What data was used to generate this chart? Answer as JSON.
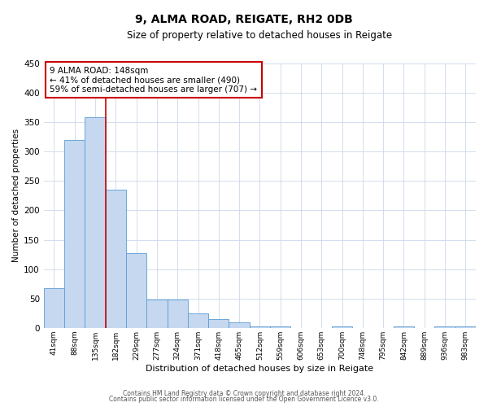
{
  "title": "9, ALMA ROAD, REIGATE, RH2 0DB",
  "subtitle": "Size of property relative to detached houses in Reigate",
  "xlabel": "Distribution of detached houses by size in Reigate",
  "ylabel": "Number of detached properties",
  "bin_labels": [
    "41sqm",
    "88sqm",
    "135sqm",
    "182sqm",
    "229sqm",
    "277sqm",
    "324sqm",
    "371sqm",
    "418sqm",
    "465sqm",
    "512sqm",
    "559sqm",
    "606sqm",
    "653sqm",
    "700sqm",
    "748sqm",
    "795sqm",
    "842sqm",
    "889sqm",
    "936sqm",
    "983sqm"
  ],
  "bar_heights": [
    67,
    320,
    358,
    235,
    127,
    48,
    48,
    25,
    15,
    10,
    3,
    3,
    0,
    0,
    3,
    0,
    0,
    3,
    0,
    3,
    3
  ],
  "bar_color": "#c5d8f0",
  "bar_edge_color": "#5b9bd5",
  "vline_x": 2,
  "vline_color": "#cc0000",
  "annotation_box_text": "9 ALMA ROAD: 148sqm\n← 41% of detached houses are smaller (490)\n59% of semi-detached houses are larger (707) →",
  "annotation_box_color": "#ffffff",
  "annotation_box_edge_color": "#cc0000",
  "ylim": [
    0,
    450
  ],
  "yticks": [
    0,
    50,
    100,
    150,
    200,
    250,
    300,
    350,
    400,
    450
  ],
  "footer_line1": "Contains HM Land Registry data © Crown copyright and database right 2024.",
  "footer_line2": "Contains public sector information licensed under the Open Government Licence v3.0.",
  "background_color": "#ffffff",
  "grid_color": "#ccd8eb"
}
